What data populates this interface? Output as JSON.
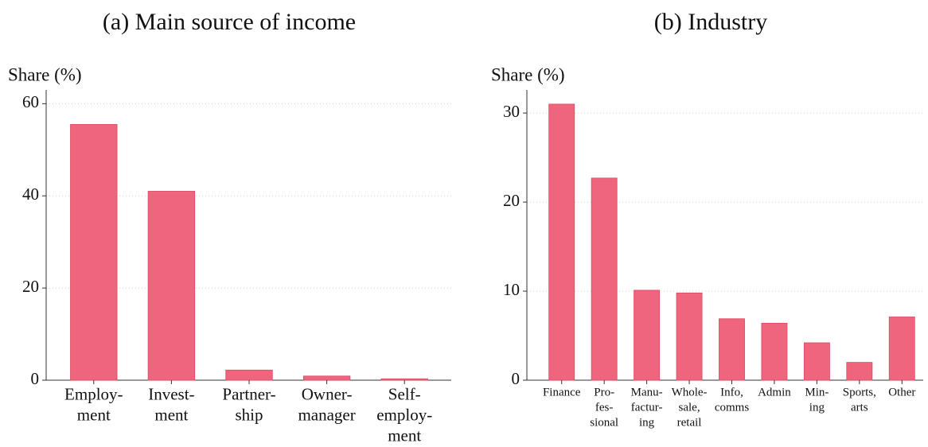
{
  "chart_data": [
    {
      "type": "bar",
      "title": "(a) Main source of income",
      "y_label": "Share (%)",
      "categories": [
        [
          "Employ-",
          "ment"
        ],
        [
          "Invest-",
          "ment"
        ],
        [
          "Partner-",
          "ship"
        ],
        [
          "Owner-",
          "manager"
        ],
        [
          "Self-",
          "employ-",
          "ment"
        ]
      ],
      "values": [
        55.5,
        41.0,
        2.2,
        0.9,
        0.3
      ],
      "color": "#f0657e",
      "ylim": [
        0,
        63
      ],
      "yticks": [
        0,
        20,
        40,
        60
      ],
      "grid": true
    },
    {
      "type": "bar",
      "title": "(b) Industry",
      "y_label": "Share (%)",
      "categories": [
        [
          "Finance"
        ],
        [
          "Pro-",
          "fes-",
          "sional"
        ],
        [
          "Manu-",
          "factur-",
          "ing"
        ],
        [
          "Whole-",
          "sale,",
          "retail"
        ],
        [
          "Info,",
          "comms"
        ],
        [
          "Admin"
        ],
        [
          "Min-",
          "ing"
        ],
        [
          "Sports,",
          "arts"
        ],
        [
          "Other"
        ]
      ],
      "values": [
        31.0,
        22.7,
        10.1,
        9.8,
        6.9,
        6.4,
        4.2,
        2.0,
        7.1
      ],
      "color": "#f0657e",
      "ylim": [
        0,
        32.6
      ],
      "yticks": [
        0,
        10,
        20,
        30
      ],
      "grid": true
    }
  ]
}
